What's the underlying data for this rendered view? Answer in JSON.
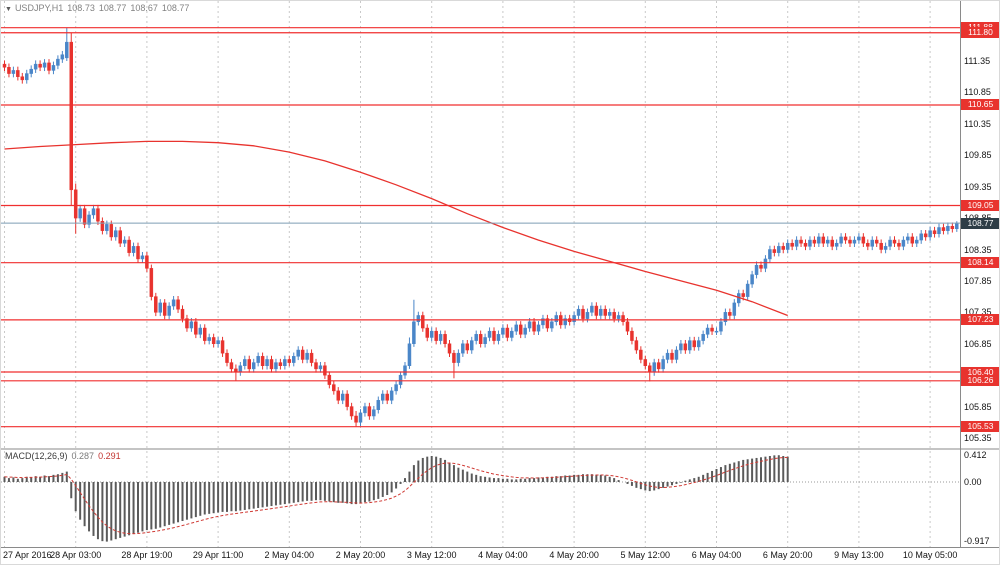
{
  "header": {
    "arrow": "▼",
    "symbol": "USDJPY,H1",
    "open": "108.73",
    "high": "108.77",
    "low": "108.67",
    "close": "108.77"
  },
  "macd_panel": {
    "label": "MACD(12,26,9)",
    "macd_value": "0.287",
    "signal_value": "0.291",
    "axis_max": "0.412",
    "axis_zero": "0.00",
    "axis_min": "-0.917"
  },
  "colors": {
    "candle_up": "#4a86c8",
    "candle_down": "#e8332e",
    "ma_line": "#e8332e",
    "level_line": "#f02f2f",
    "level_box_bg": "#e8332e",
    "current_box_bg": "#2e3d46",
    "current_line": "#7d9eb5",
    "grid": "#c9c9c9",
    "macd_bar": "#5a5a5a",
    "macd_signal": "#d03a34",
    "axis_text": "#141414",
    "border": "#8a8a8a",
    "zero_line": "#9a9a9a"
  },
  "chart_data": {
    "type": "candlestick",
    "title": "USDJPY,H1",
    "x_labels": [
      "27 Apr 2016",
      "28 Apr 03:00",
      "28 Apr 19:00",
      "29 Apr 11:00",
      "2 May 04:00",
      "2 May 20:00",
      "3 May 12:00",
      "4 May 04:00",
      "4 May 20:00",
      "5 May 12:00",
      "6 May 04:00",
      "6 May 20:00",
      "9 May 13:00",
      "10 May 05:00"
    ],
    "bars_per_label": 16,
    "y_axis": {
      "min": 105.35,
      "max": 111.35,
      "ticks": [
        111.35,
        110.85,
        110.35,
        109.85,
        109.35,
        108.85,
        108.35,
        107.85,
        107.35,
        106.85,
        106.35,
        105.85,
        105.35
      ]
    },
    "levels": [
      111.88,
      111.8,
      110.65,
      109.05,
      108.14,
      107.23,
      106.4,
      106.26,
      105.53
    ],
    "current_price": 108.77,
    "default_wick": 0.06,
    "closes": [
      111.25,
      111.15,
      111.2,
      111.1,
      111.05,
      111.15,
      111.22,
      111.3,
      111.25,
      111.32,
      111.2,
      111.28,
      111.38,
      111.45,
      111.65,
      109.3,
      108.85,
      109.0,
      108.75,
      108.9,
      109.0,
      108.8,
      108.65,
      108.75,
      108.55,
      108.65,
      108.45,
      108.5,
      108.3,
      108.4,
      108.2,
      108.25,
      108.05,
      107.6,
      107.35,
      107.5,
      107.3,
      107.45,
      107.55,
      107.4,
      107.25,
      107.1,
      107.2,
      107.0,
      107.1,
      106.9,
      106.95,
      106.85,
      106.9,
      106.7,
      106.55,
      106.45,
      106.4,
      106.5,
      106.6,
      106.45,
      106.55,
      106.65,
      106.5,
      106.6,
      106.45,
      106.55,
      106.5,
      106.6,
      106.55,
      106.65,
      106.75,
      106.6,
      106.7,
      106.55,
      106.45,
      106.5,
      106.35,
      106.2,
      106.1,
      105.95,
      106.05,
      105.85,
      105.7,
      105.6,
      105.75,
      105.85,
      105.7,
      105.8,
      105.95,
      106.05,
      105.95,
      106.1,
      106.2,
      106.35,
      106.5,
      106.85,
      107.2,
      107.3,
      107.1,
      106.95,
      107.05,
      106.9,
      107.0,
      106.85,
      106.7,
      106.55,
      106.7,
      106.85,
      106.75,
      106.9,
      107.0,
      106.85,
      106.95,
      107.05,
      106.9,
      107.0,
      107.1,
      106.95,
      107.05,
      107.15,
      107.0,
      107.1,
      107.2,
      107.05,
      107.15,
      107.25,
      107.1,
      107.2,
      107.3,
      107.15,
      107.25,
      107.2,
      107.3,
      107.4,
      107.25,
      107.35,
      107.45,
      107.3,
      107.4,
      107.3,
      107.35,
      107.25,
      107.3,
      107.2,
      107.05,
      106.9,
      106.75,
      106.6,
      106.5,
      106.4,
      106.55,
      106.45,
      106.6,
      106.7,
      106.6,
      106.75,
      106.85,
      106.75,
      106.9,
      106.8,
      106.9,
      107.0,
      107.1,
      107.05,
      107.05,
      107.2,
      107.35,
      107.3,
      107.5,
      107.65,
      107.6,
      107.8,
      107.95,
      108.1,
      108.05,
      108.2,
      108.35,
      108.3,
      108.4,
      108.35,
      108.45,
      108.4,
      108.5,
      108.45,
      108.4,
      108.5,
      108.45,
      108.55,
      108.45,
      108.5,
      108.4,
      108.45,
      108.55,
      108.5,
      108.45,
      108.5,
      108.55,
      108.45,
      108.4,
      108.5,
      108.45,
      108.35,
      108.4,
      108.5,
      108.45,
      108.4,
      108.5,
      108.55,
      108.45,
      108.5,
      108.6,
      108.55,
      108.65,
      108.6,
      108.7,
      108.65,
      108.72,
      108.68,
      108.77
    ],
    "candle_overrides": {
      "14": [
        111.4,
        111.88,
        111.35,
        111.65
      ],
      "15": [
        111.65,
        111.8,
        109.05,
        109.3
      ],
      "16": [
        109.3,
        109.4,
        108.6,
        108.85
      ],
      "52": [
        106.45,
        106.52,
        106.26,
        106.4
      ],
      "79": [
        105.7,
        105.78,
        105.53,
        105.6
      ],
      "91": [
        106.5,
        106.95,
        106.45,
        106.85
      ],
      "92": [
        106.85,
        107.55,
        106.8,
        107.2
      ],
      "101": [
        106.7,
        106.75,
        106.3,
        106.55
      ],
      "145": [
        106.5,
        106.55,
        106.25,
        106.4
      ],
      "214": [
        108.68,
        108.8,
        108.63,
        108.77
      ]
    },
    "ma_points": [
      [
        0,
        109.95
      ],
      [
        8,
        109.99
      ],
      [
        16,
        110.02
      ],
      [
        24,
        110.05
      ],
      [
        32,
        110.07
      ],
      [
        40,
        110.07
      ],
      [
        48,
        110.05
      ],
      [
        56,
        110.0
      ],
      [
        64,
        109.9
      ],
      [
        72,
        109.76
      ],
      [
        80,
        109.58
      ],
      [
        88,
        109.38
      ],
      [
        96,
        109.16
      ],
      [
        104,
        108.92
      ],
      [
        112,
        108.7
      ],
      [
        120,
        108.5
      ],
      [
        128,
        108.32
      ],
      [
        136,
        108.16
      ],
      [
        144,
        108.0
      ],
      [
        152,
        107.85
      ],
      [
        160,
        107.7
      ],
      [
        168,
        107.52
      ],
      [
        176,
        107.3
      ]
    ],
    "macd": {
      "axis_max": 0.412,
      "axis_min": -0.917,
      "histogram": [
        0.08,
        0.06,
        0.07,
        0.05,
        0.06,
        0.08,
        0.07,
        0.09,
        0.08,
        0.1,
        0.09,
        0.11,
        0.12,
        0.14,
        0.16,
        -0.25,
        -0.45,
        -0.58,
        -0.68,
        -0.76,
        -0.83,
        -0.88,
        -0.91,
        -0.917,
        -0.9,
        -0.88,
        -0.86,
        -0.84,
        -0.82,
        -0.8,
        -0.78,
        -0.76,
        -0.74,
        -0.73,
        -0.72,
        -0.7,
        -0.68,
        -0.66,
        -0.64,
        -0.62,
        -0.6,
        -0.58,
        -0.56,
        -0.54,
        -0.52,
        -0.5,
        -0.49,
        -0.48,
        -0.47,
        -0.46,
        -0.46,
        -0.45,
        -0.45,
        -0.44,
        -0.43,
        -0.42,
        -0.41,
        -0.4,
        -0.39,
        -0.38,
        -0.37,
        -0.36,
        -0.35,
        -0.34,
        -0.33,
        -0.32,
        -0.31,
        -0.3,
        -0.29,
        -0.29,
        -0.28,
        -0.28,
        -0.29,
        -0.3,
        -0.31,
        -0.32,
        -0.32,
        -0.33,
        -0.34,
        -0.34,
        -0.33,
        -0.31,
        -0.3,
        -0.28,
        -0.26,
        -0.23,
        -0.2,
        -0.16,
        -0.1,
        -0.03,
        0.06,
        0.16,
        0.26,
        0.33,
        0.37,
        0.39,
        0.4,
        0.39,
        0.37,
        0.34,
        0.3,
        0.26,
        0.22,
        0.19,
        0.16,
        0.13,
        0.11,
        0.09,
        0.08,
        0.07,
        0.06,
        0.06,
        0.05,
        0.05,
        0.04,
        0.04,
        0.05,
        0.05,
        0.06,
        0.06,
        0.07,
        0.07,
        0.08,
        0.08,
        0.09,
        0.09,
        0.1,
        0.1,
        0.11,
        0.11,
        0.12,
        0.12,
        0.12,
        0.11,
        0.11,
        0.1,
        0.08,
        0.06,
        0.03,
        0.0,
        -0.03,
        -0.06,
        -0.09,
        -0.11,
        -0.13,
        -0.14,
        -0.13,
        -0.11,
        -0.09,
        -0.07,
        -0.05,
        -0.03,
        -0.01,
        0.02,
        0.04,
        0.06,
        0.08,
        0.11,
        0.14,
        0.17,
        0.2,
        0.23,
        0.26,
        0.28,
        0.3,
        0.32,
        0.34,
        0.35,
        0.36,
        0.37,
        0.38,
        0.39,
        0.4,
        0.41,
        0.412,
        0.4,
        0.39
      ]
    }
  }
}
